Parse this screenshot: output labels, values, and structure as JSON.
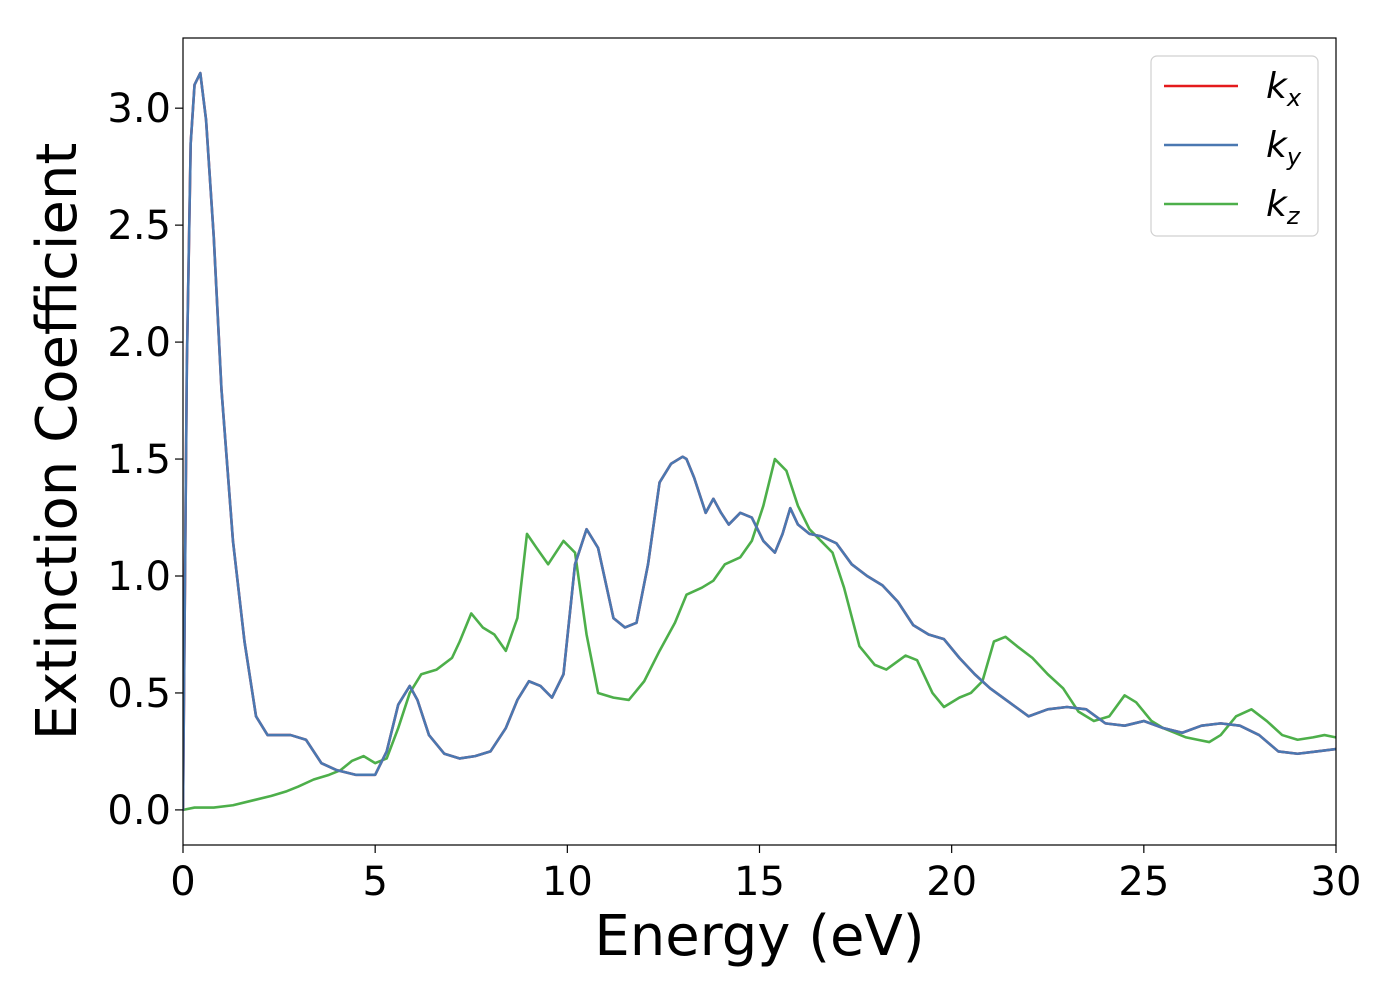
{
  "chart_data": {
    "type": "line",
    "xlabel": "Energy (eV)",
    "ylabel": "Extinction Coefficient",
    "xlim": [
      0,
      30
    ],
    "ylim": [
      -0.15,
      3.3
    ],
    "xticks": [
      0,
      5,
      10,
      15,
      20,
      25,
      30
    ],
    "xtick_labels": [
      "0",
      "5",
      "10",
      "15",
      "20",
      "25",
      "30"
    ],
    "yticks": [
      0.0,
      0.5,
      1.0,
      1.5,
      2.0,
      2.5,
      3.0
    ],
    "ytick_labels": [
      "0.0",
      "0.5",
      "1.0",
      "1.5",
      "2.0",
      "2.5",
      "3.0"
    ],
    "grid": false,
    "legend_position": "top-right",
    "series": [
      {
        "name": "k",
        "sub": "x",
        "color": "#e41a1c",
        "x": [
          0,
          0.1,
          0.2,
          0.3,
          0.45,
          0.6,
          0.8,
          1.0,
          1.3,
          1.6,
          1.9,
          2.2,
          2.5,
          2.8,
          3.2,
          3.6,
          4.0,
          4.5,
          5.0,
          5.3,
          5.6,
          5.9,
          6.1,
          6.4,
          6.8,
          7.2,
          7.6,
          8.0,
          8.4,
          8.7,
          9.0,
          9.3,
          9.6,
          9.9,
          10.2,
          10.5,
          10.8,
          11.2,
          11.5,
          11.8,
          12.1,
          12.4,
          12.7,
          13.0,
          13.1,
          13.3,
          13.6,
          13.8,
          14.0,
          14.2,
          14.5,
          14.8,
          15.1,
          15.4,
          15.6,
          15.8,
          16.0,
          16.3,
          16.6,
          17.0,
          17.4,
          17.8,
          18.2,
          18.6,
          19.0,
          19.4,
          19.8,
          20.2,
          20.6,
          21.0,
          21.5,
          22.0,
          22.5,
          23.0,
          23.5,
          24.0,
          24.5,
          25.0,
          25.5,
          26.0,
          26.5,
          27.0,
          27.5,
          28.0,
          28.5,
          29.0,
          29.5,
          30.0
        ],
        "y": [
          0.0,
          1.9,
          2.85,
          3.1,
          3.15,
          2.95,
          2.45,
          1.8,
          1.15,
          0.72,
          0.4,
          0.32,
          0.32,
          0.32,
          0.3,
          0.2,
          0.17,
          0.15,
          0.15,
          0.25,
          0.45,
          0.53,
          0.47,
          0.32,
          0.24,
          0.22,
          0.23,
          0.25,
          0.35,
          0.47,
          0.55,
          0.53,
          0.48,
          0.58,
          1.05,
          1.2,
          1.12,
          0.82,
          0.78,
          0.8,
          1.05,
          1.4,
          1.48,
          1.51,
          1.5,
          1.42,
          1.27,
          1.33,
          1.27,
          1.22,
          1.27,
          1.25,
          1.15,
          1.1,
          1.18,
          1.29,
          1.22,
          1.18,
          1.17,
          1.14,
          1.05,
          1.0,
          0.96,
          0.89,
          0.79,
          0.75,
          0.73,
          0.65,
          0.58,
          0.52,
          0.46,
          0.4,
          0.43,
          0.44,
          0.43,
          0.37,
          0.36,
          0.38,
          0.35,
          0.33,
          0.36,
          0.37,
          0.36,
          0.32,
          0.25,
          0.24,
          0.25,
          0.26
        ]
      },
      {
        "name": "k",
        "sub": "y",
        "color": "#4a78b1",
        "x": [
          0,
          0.1,
          0.2,
          0.3,
          0.45,
          0.6,
          0.8,
          1.0,
          1.3,
          1.6,
          1.9,
          2.2,
          2.5,
          2.8,
          3.2,
          3.6,
          4.0,
          4.5,
          5.0,
          5.3,
          5.6,
          5.9,
          6.1,
          6.4,
          6.8,
          7.2,
          7.6,
          8.0,
          8.4,
          8.7,
          9.0,
          9.3,
          9.6,
          9.9,
          10.2,
          10.5,
          10.8,
          11.2,
          11.5,
          11.8,
          12.1,
          12.4,
          12.7,
          13.0,
          13.1,
          13.3,
          13.6,
          13.8,
          14.0,
          14.2,
          14.5,
          14.8,
          15.1,
          15.4,
          15.6,
          15.8,
          16.0,
          16.3,
          16.6,
          17.0,
          17.4,
          17.8,
          18.2,
          18.6,
          19.0,
          19.4,
          19.8,
          20.2,
          20.6,
          21.0,
          21.5,
          22.0,
          22.5,
          23.0,
          23.5,
          24.0,
          24.5,
          25.0,
          25.5,
          26.0,
          26.5,
          27.0,
          27.5,
          28.0,
          28.5,
          29.0,
          29.5,
          30.0
        ],
        "y": [
          0.0,
          1.9,
          2.85,
          3.1,
          3.15,
          2.95,
          2.45,
          1.8,
          1.15,
          0.72,
          0.4,
          0.32,
          0.32,
          0.32,
          0.3,
          0.2,
          0.17,
          0.15,
          0.15,
          0.25,
          0.45,
          0.53,
          0.47,
          0.32,
          0.24,
          0.22,
          0.23,
          0.25,
          0.35,
          0.47,
          0.55,
          0.53,
          0.48,
          0.58,
          1.05,
          1.2,
          1.12,
          0.82,
          0.78,
          0.8,
          1.05,
          1.4,
          1.48,
          1.51,
          1.5,
          1.42,
          1.27,
          1.33,
          1.27,
          1.22,
          1.27,
          1.25,
          1.15,
          1.1,
          1.18,
          1.29,
          1.22,
          1.18,
          1.17,
          1.14,
          1.05,
          1.0,
          0.96,
          0.89,
          0.79,
          0.75,
          0.73,
          0.65,
          0.58,
          0.52,
          0.46,
          0.4,
          0.43,
          0.44,
          0.43,
          0.37,
          0.36,
          0.38,
          0.35,
          0.33,
          0.36,
          0.37,
          0.36,
          0.32,
          0.25,
          0.24,
          0.25,
          0.26
        ]
      },
      {
        "name": "k",
        "sub": "z",
        "color": "#4daf4a",
        "x": [
          0,
          0.3,
          0.8,
          1.3,
          1.8,
          2.3,
          2.7,
          3.0,
          3.4,
          3.8,
          4.1,
          4.4,
          4.7,
          5.0,
          5.3,
          5.6,
          5.9,
          6.2,
          6.6,
          7.0,
          7.2,
          7.5,
          7.8,
          8.1,
          8.4,
          8.7,
          8.95,
          9.2,
          9.5,
          9.9,
          10.2,
          10.5,
          10.8,
          11.2,
          11.6,
          12.0,
          12.4,
          12.8,
          13.1,
          13.5,
          13.8,
          14.1,
          14.5,
          14.8,
          15.1,
          15.4,
          15.7,
          16.0,
          16.3,
          16.6,
          16.9,
          17.2,
          17.6,
          18.0,
          18.3,
          18.8,
          19.1,
          19.5,
          19.8,
          20.2,
          20.5,
          20.8,
          21.1,
          21.4,
          21.7,
          22.1,
          22.5,
          22.9,
          23.3,
          23.7,
          24.1,
          24.5,
          24.8,
          25.2,
          25.5,
          25.8,
          26.1,
          26.4,
          26.7,
          27.0,
          27.4,
          27.8,
          28.2,
          28.6,
          29.0,
          29.4,
          29.7,
          30.0
        ],
        "y": [
          0.0,
          0.01,
          0.01,
          0.02,
          0.04,
          0.06,
          0.08,
          0.1,
          0.13,
          0.15,
          0.17,
          0.21,
          0.23,
          0.2,
          0.22,
          0.35,
          0.5,
          0.58,
          0.6,
          0.65,
          0.72,
          0.84,
          0.78,
          0.75,
          0.68,
          0.82,
          1.18,
          1.12,
          1.05,
          1.15,
          1.1,
          0.75,
          0.5,
          0.48,
          0.47,
          0.55,
          0.68,
          0.8,
          0.92,
          0.95,
          0.98,
          1.05,
          1.08,
          1.15,
          1.3,
          1.5,
          1.45,
          1.3,
          1.2,
          1.15,
          1.1,
          0.95,
          0.7,
          0.62,
          0.6,
          0.66,
          0.64,
          0.5,
          0.44,
          0.48,
          0.5,
          0.55,
          0.72,
          0.74,
          0.7,
          0.65,
          0.58,
          0.52,
          0.42,
          0.38,
          0.4,
          0.49,
          0.46,
          0.38,
          0.35,
          0.33,
          0.31,
          0.3,
          0.29,
          0.32,
          0.4,
          0.43,
          0.38,
          0.32,
          0.3,
          0.31,
          0.32,
          0.31
        ]
      }
    ]
  }
}
